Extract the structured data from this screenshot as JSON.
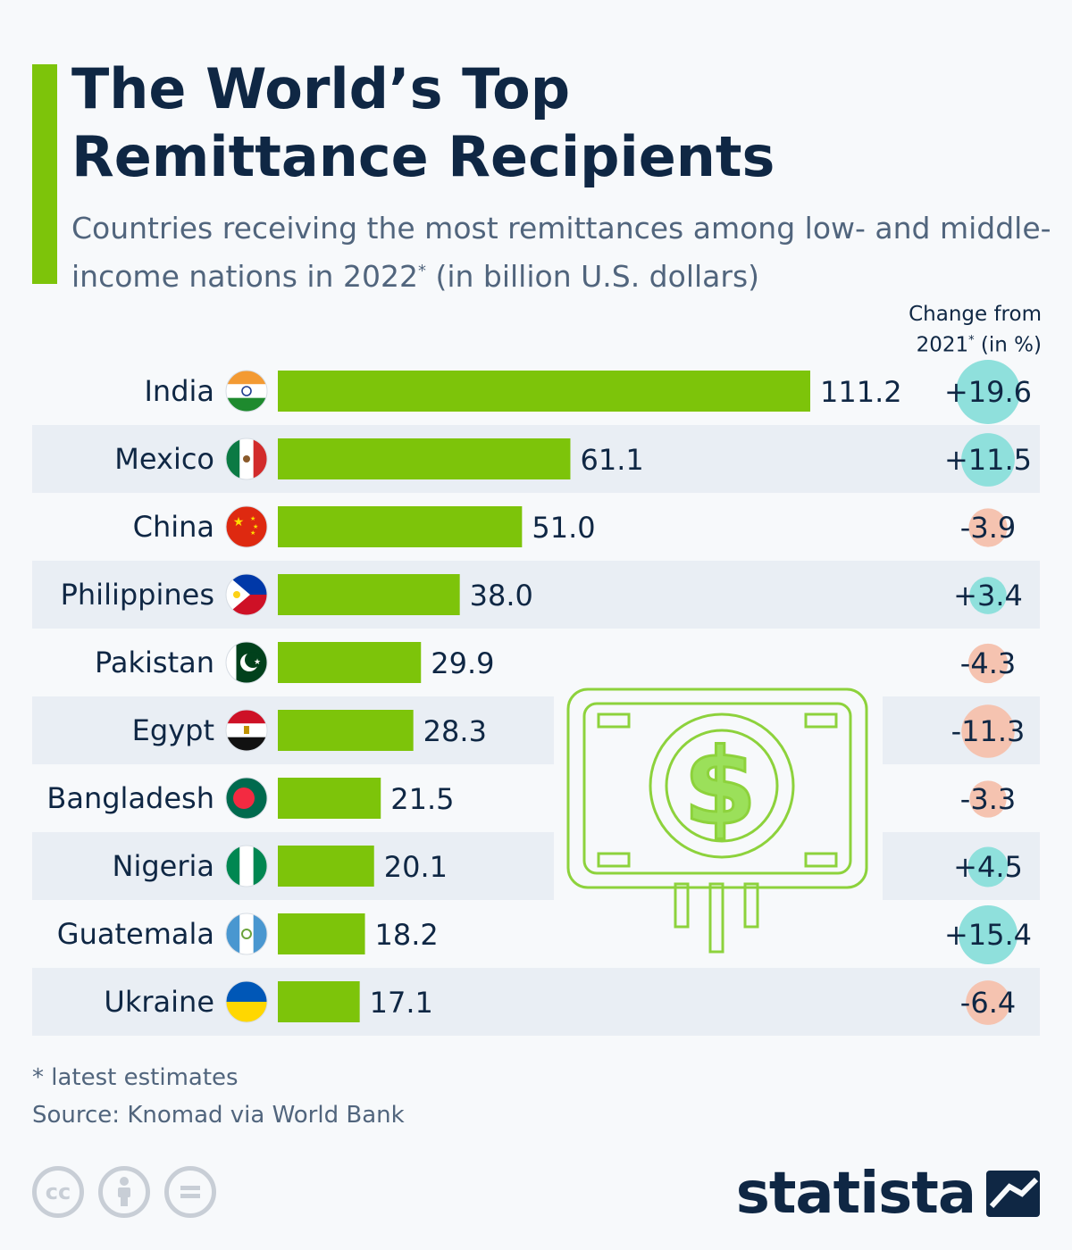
{
  "header": {
    "title_line1": "The World’s Top",
    "title_line2": "Remittance Recipients",
    "subtitle_part1": "Countries receiving the most remittances among low- and middle- income nations in 2022",
    "subtitle_sup": "*",
    "subtitle_part2": " (in billion U.S. dollars)",
    "change_header_line1": "Change from",
    "change_header_year": "2021",
    "change_header_sup": "*",
    "change_header_unit": " (in %)"
  },
  "colors": {
    "bar": "#7dc40a",
    "positive_bubble": "#8fe0dc",
    "negative_bubble": "#f5c3b0",
    "stripe": "#e9eef4",
    "text": "#0f2744"
  },
  "chart_data": {
    "type": "bar",
    "orientation": "horizontal",
    "categories": [
      "India",
      "Mexico",
      "China",
      "Philippines",
      "Pakistan",
      "Egypt",
      "Bangladesh",
      "Nigeria",
      "Guatemala",
      "Ukraine"
    ],
    "values": [
      111.2,
      61.1,
      51.0,
      38.0,
      29.9,
      28.3,
      21.5,
      20.1,
      18.2,
      17.1
    ],
    "value_labels": [
      "111.2",
      "61.1",
      "51.0",
      "38.0",
      "29.9",
      "28.3",
      "21.5",
      "20.1",
      "18.2",
      "17.1"
    ],
    "change": [
      19.6,
      11.5,
      -3.9,
      3.4,
      -4.3,
      -11.3,
      -3.3,
      4.5,
      15.4,
      -6.4
    ],
    "change_labels": [
      "+19.6",
      "+11.5",
      "-3.9",
      "+3.4",
      "-4.3",
      "-11.3",
      "-3.3",
      "+4.5",
      "+15.4",
      "-6.4"
    ],
    "flags": [
      "india-flag",
      "mexico-flag",
      "china-flag",
      "philippines-flag",
      "pakistan-flag",
      "egypt-flag",
      "bangladesh-flag",
      "nigeria-flag",
      "guatemala-flag",
      "ukraine-flag"
    ],
    "xlim": [
      0,
      111.2
    ],
    "grid": false
  },
  "footer": {
    "footnote": "* latest estimates",
    "source": "Source: Knomad via World Bank",
    "brand": "statista",
    "cc_icons": [
      "cc-icon",
      "attribution-icon",
      "no-derivatives-icon"
    ]
  }
}
